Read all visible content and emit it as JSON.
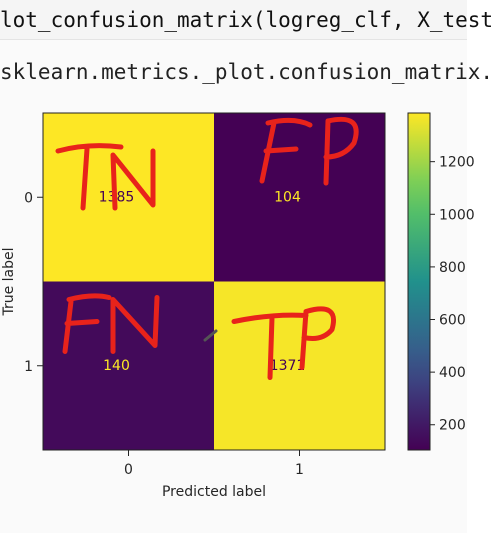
{
  "code": {
    "line_input": "lot_confusion_matrix(logreg_clf, X_test",
    "line_output": "sklearn.metrics._plot.confusion_matrix."
  },
  "chart_data": {
    "type": "heatmap",
    "xlabel": "Predicted label",
    "ylabel": "True label",
    "x_categories": [
      "0",
      "1"
    ],
    "y_categories": [
      "0",
      "1"
    ],
    "matrix": [
      [
        1385,
        104
      ],
      [
        140,
        1371
      ]
    ],
    "colorbar": {
      "ticks": [
        200,
        400,
        600,
        800,
        1000,
        1200
      ],
      "tick_labels": [
        "200",
        "400",
        "600",
        "800",
        "1000",
        "1200"
      ],
      "range": [
        104,
        1385
      ],
      "colormap": "viridis"
    },
    "annotations": [
      {
        "cell": [
          0,
          0
        ],
        "text": "TN"
      },
      {
        "cell": [
          0,
          1
        ],
        "text": "FP"
      },
      {
        "cell": [
          1,
          0
        ],
        "text": "FN"
      },
      {
        "cell": [
          1,
          1
        ],
        "text": "TP"
      }
    ],
    "colors": {
      "high": "#fde725",
      "low": "#440154",
      "text_on_high": "#440154",
      "text_on_low": "#fde725",
      "annotation_ink": "#e8231b"
    }
  }
}
